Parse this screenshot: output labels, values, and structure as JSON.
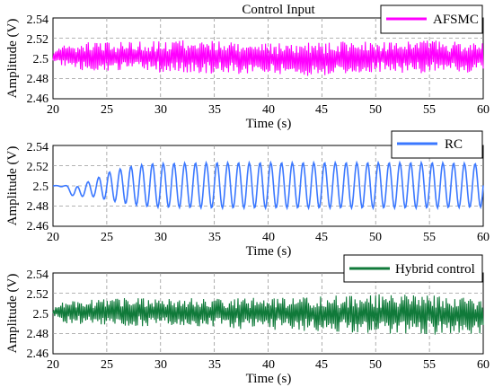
{
  "chart_data": [
    {
      "type": "line",
      "title": "Control Input",
      "xlabel": "Time (s)",
      "ylabel": "Amplitude (V)",
      "xlim": [
        20,
        60
      ],
      "ylim": [
        2.46,
        2.54
      ],
      "x_ticks": [
        "20",
        "25",
        "30",
        "35",
        "40",
        "45",
        "50",
        "55",
        "60"
      ],
      "y_ticks": [
        "2.46",
        "2.48",
        "2.5",
        "2.52",
        "2.54"
      ],
      "grid": true,
      "legend_position": "top-right",
      "series": [
        {
          "name": "AFSMC",
          "color": "#ff00ff",
          "points": [
            [
              20,
              2.503
            ],
            [
              21,
              2.501
            ],
            [
              22,
              2.505
            ],
            [
              25,
              2.502
            ],
            [
              30,
              2.504
            ],
            [
              35,
              2.5
            ],
            [
              40,
              2.498
            ],
            [
              45,
              2.499
            ],
            [
              50,
              2.503
            ],
            [
              55,
              2.502
            ],
            [
              60,
              2.501
            ]
          ],
          "envelope": [
            [
              20,
              2.498,
              2.508
            ],
            [
              22,
              2.486,
              2.517
            ],
            [
              25,
              2.487,
              2.516
            ],
            [
              30,
              2.486,
              2.518
            ],
            [
              35,
              2.485,
              2.518
            ],
            [
              40,
              2.484,
              2.515
            ],
            [
              45,
              2.482,
              2.516
            ],
            [
              50,
              2.486,
              2.518
            ],
            [
              55,
              2.485,
              2.518
            ],
            [
              60,
              2.486,
              2.515
            ]
          ]
        }
      ]
    },
    {
      "type": "line",
      "title": "",
      "xlabel": "Time (s)",
      "ylabel": "Amplitude (V)",
      "xlim": [
        20,
        60
      ],
      "ylim": [
        2.46,
        2.54
      ],
      "x_ticks": [
        "20",
        "25",
        "30",
        "35",
        "40",
        "45",
        "50",
        "55",
        "60"
      ],
      "y_ticks": [
        "2.46",
        "2.48",
        "2.5",
        "2.52",
        "2.54"
      ],
      "grid": true,
      "legend_position": "top-right",
      "series": [
        {
          "name": "RC",
          "color": "#3b78ff",
          "oscillation_period_s": 1.0,
          "points": [
            [
              20,
              2.5
            ],
            [
              21,
              2.5
            ],
            [
              22,
              2.492
            ],
            [
              23,
              2.495
            ],
            [
              24,
              2.5
            ],
            [
              25,
              2.5
            ],
            [
              27,
              2.5
            ],
            [
              30,
              2.5
            ],
            [
              35,
              2.5
            ],
            [
              40,
              2.5
            ],
            [
              45,
              2.5
            ],
            [
              50,
              2.5
            ],
            [
              55,
              2.5
            ],
            [
              60,
              2.5
            ]
          ],
          "envelope": [
            [
              20,
              2.5,
              2.5
            ],
            [
              21,
              2.499,
              2.501
            ],
            [
              22,
              2.488,
              2.498
            ],
            [
              23,
              2.49,
              2.503
            ],
            [
              24,
              2.489,
              2.507
            ],
            [
              25,
              2.486,
              2.513
            ],
            [
              27,
              2.482,
              2.519
            ],
            [
              29,
              2.479,
              2.522
            ],
            [
              35,
              2.478,
              2.523
            ],
            [
              40,
              2.478,
              2.523
            ],
            [
              45,
              2.478,
              2.523
            ],
            [
              50,
              2.478,
              2.523
            ],
            [
              55,
              2.478,
              2.523
            ],
            [
              60,
              2.479,
              2.522
            ]
          ]
        }
      ]
    },
    {
      "type": "line",
      "title": "",
      "xlabel": "Time (s)",
      "ylabel": "Amplitude (V)",
      "xlim": [
        20,
        60
      ],
      "ylim": [
        2.46,
        2.54
      ],
      "x_ticks": [
        "20",
        "25",
        "30",
        "35",
        "40",
        "45",
        "50",
        "55",
        "60"
      ],
      "y_ticks": [
        "2.46",
        "2.48",
        "2.5",
        "2.52",
        "2.54"
      ],
      "grid": true,
      "legend_position": "top-right",
      "series": [
        {
          "name": "Hybrid control",
          "color": "#107a3a",
          "points": [
            [
              20,
              2.503
            ],
            [
              22,
              2.502
            ],
            [
              25,
              2.503
            ],
            [
              30,
              2.502
            ],
            [
              35,
              2.5
            ],
            [
              40,
              2.5
            ],
            [
              45,
              2.5
            ],
            [
              50,
              2.5
            ],
            [
              55,
              2.5
            ],
            [
              60,
              2.5
            ]
          ],
          "envelope": [
            [
              20,
              2.497,
              2.506
            ],
            [
              21,
              2.49,
              2.512
            ],
            [
              25,
              2.488,
              2.515
            ],
            [
              30,
              2.487,
              2.516
            ],
            [
              35,
              2.485,
              2.516
            ],
            [
              40,
              2.484,
              2.516
            ],
            [
              45,
              2.482,
              2.518
            ],
            [
              50,
              2.48,
              2.519
            ],
            [
              55,
              2.479,
              2.519
            ],
            [
              60,
              2.479,
              2.517
            ]
          ]
        }
      ]
    }
  ]
}
